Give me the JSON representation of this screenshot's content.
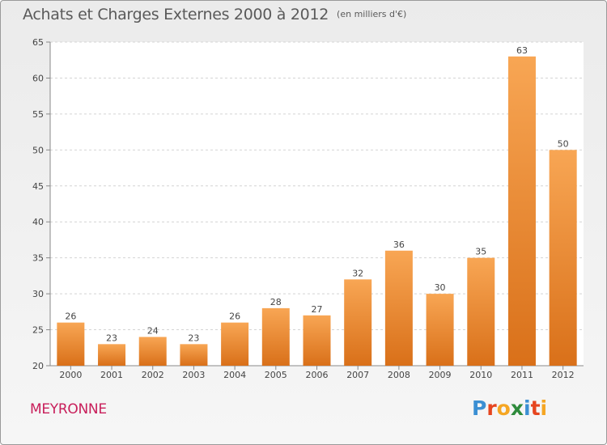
{
  "header": {
    "title": "Achats et Charges Externes 2000 à 2012",
    "unit": "(en milliers d'€)"
  },
  "footer": {
    "commune": "MEYRONNE",
    "brand_letters": [
      "P",
      "r",
      "o",
      "x",
      "i",
      "t",
      "i"
    ]
  },
  "colors": {
    "bar_top": "#f8a654",
    "bar_bottom": "#d97019",
    "title": "#5a5a5a",
    "commune": "#c81e5a",
    "brand": [
      "#3b8fd3",
      "#e6451f",
      "#f5a623",
      "#2e8b3c",
      "#3b8fd3",
      "#e6451f",
      "#f5a623"
    ]
  },
  "chart_data": {
    "type": "bar",
    "categories": [
      "2000",
      "2001",
      "2002",
      "2003",
      "2004",
      "2005",
      "2006",
      "2007",
      "2008",
      "2009",
      "2010",
      "2011",
      "2012"
    ],
    "values": [
      26,
      23,
      24,
      23,
      26,
      28,
      27,
      32,
      36,
      30,
      35,
      63,
      50
    ],
    "ylim": [
      20,
      65
    ],
    "yticks": [
      20,
      25,
      30,
      35,
      40,
      45,
      50,
      55,
      60,
      65
    ],
    "grid": true,
    "data_labels": true
  }
}
